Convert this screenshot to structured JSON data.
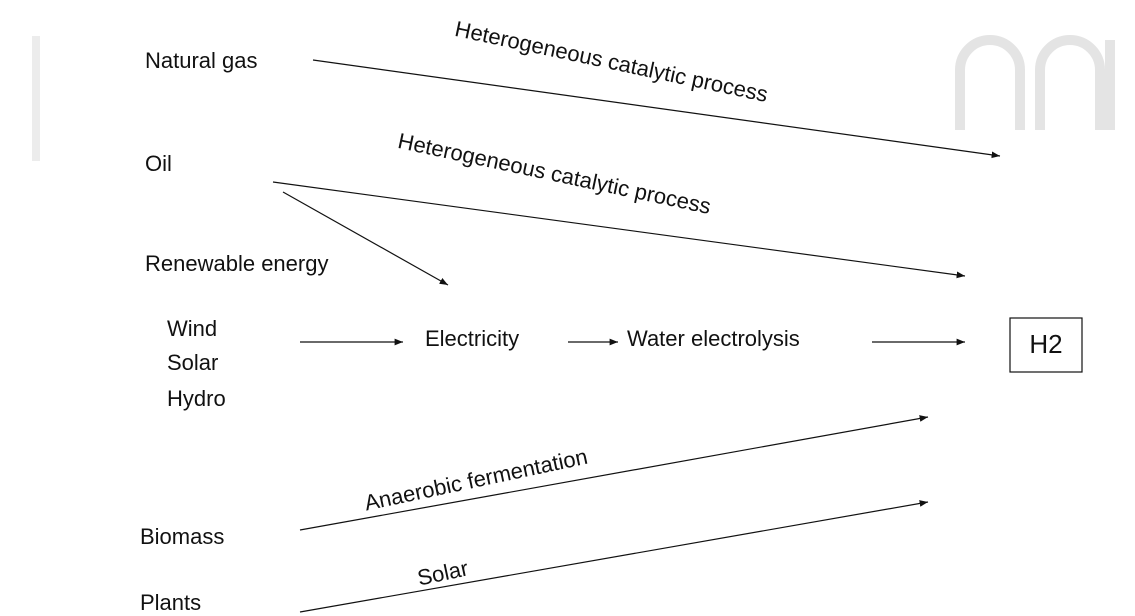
{
  "sources": [
    "Natural gas",
    "Oil",
    "Renewable energy",
    "Biomass",
    "Plants"
  ],
  "renewable_types": [
    "Wind",
    "Solar",
    "Hydro"
  ],
  "steps": [
    "Electricity",
    "Water electrolysis"
  ],
  "product": "H2",
  "processes": [
    "Heterogeneous catalytic process",
    "Heterogeneous catalytic process",
    "Anaerobic fermentation",
    "Solar"
  ]
}
